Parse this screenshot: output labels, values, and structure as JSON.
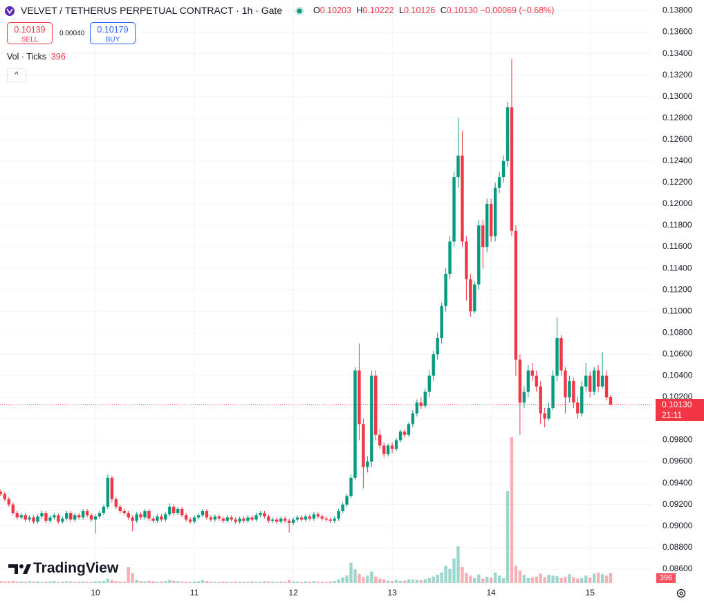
{
  "chart_data": {
    "type": "candlestick",
    "title": "VELVET / TETHERUS PERPETUAL CONTRACT · 1h · Gate",
    "ohlc_legend": [
      {
        "label": "O",
        "value": "0.10203"
      },
      {
        "label": "H",
        "value": "0.10222"
      },
      {
        "label": "L",
        "value": "0.10126"
      },
      {
        "label": "C",
        "value": "0.10130"
      }
    ],
    "change": "−0.00069 (−0.68%)",
    "sell": {
      "price": "0.10139",
      "label": "SELL"
    },
    "spread": "0.00040",
    "buy": {
      "price": "0.10179",
      "label": "BUY"
    },
    "volume_indicator": {
      "name": "Vol · Ticks",
      "value": "396"
    },
    "last_price_label": {
      "price": "0.10130",
      "countdown": "21:11"
    },
    "last_volume_label": "396",
    "watermark": "TradingView",
    "up_color": "#089981",
    "down_color": "#f23645",
    "grid": true,
    "categories": [
      null,
      null,
      null,
      null,
      null,
      null,
      null,
      null,
      null,
      null,
      null,
      null,
      null,
      null,
      null,
      null,
      null,
      null,
      null,
      null,
      null,
      null,
      null,
      "10",
      null,
      null,
      null,
      null,
      null,
      null,
      null,
      null,
      null,
      null,
      null,
      null,
      null,
      null,
      null,
      null,
      null,
      null,
      null,
      null,
      null,
      null,
      null,
      "11",
      null,
      null,
      null,
      null,
      null,
      null,
      null,
      null,
      null,
      null,
      null,
      null,
      null,
      null,
      null,
      null,
      null,
      null,
      null,
      null,
      null,
      null,
      null,
      "12",
      null,
      null,
      null,
      null,
      null,
      null,
      null,
      null,
      null,
      null,
      null,
      null,
      null,
      null,
      null,
      null,
      null,
      null,
      null,
      null,
      null,
      null,
      null,
      "13",
      null,
      null,
      null,
      null,
      null,
      null,
      null,
      null,
      null,
      null,
      null,
      null,
      null,
      null,
      null,
      null,
      null,
      null,
      null,
      null,
      null,
      null,
      null,
      "14",
      null,
      null,
      null,
      null,
      null,
      null,
      null,
      null,
      null,
      null,
      null,
      null,
      null,
      null,
      null,
      null,
      null,
      null,
      null,
      null,
      null,
      null,
      null,
      "15",
      null,
      null,
      null,
      null,
      null
    ],
    "open": [
      0.0932,
      0.093,
      0.0925,
      0.092,
      0.0912,
      0.0908,
      0.091,
      0.0906,
      0.0908,
      0.0904,
      0.0909,
      0.0912,
      0.0905,
      0.0908,
      0.091,
      0.0904,
      0.0907,
      0.0912,
      0.0906,
      0.091,
      0.0908,
      0.0914,
      0.091,
      0.0906,
      0.0909,
      0.0912,
      0.0918,
      0.0945,
      0.0925,
      0.0918,
      0.0914,
      0.0912,
      0.0908,
      0.0905,
      0.0911,
      0.0908,
      0.0914,
      0.0907,
      0.0905,
      0.0909,
      0.0906,
      0.0911,
      0.0918,
      0.0912,
      0.0916,
      0.091,
      0.0906,
      0.0904,
      0.0908,
      0.091,
      0.0914,
      0.0908,
      0.0906,
      0.0909,
      0.0907,
      0.0905,
      0.0908,
      0.0906,
      0.0904,
      0.0907,
      0.0905,
      0.0908,
      0.0906,
      0.091,
      0.0912,
      0.0909,
      0.0905,
      0.0906,
      0.0904,
      0.0907,
      0.0905,
      0.0903,
      0.0906,
      0.0908,
      0.0906,
      0.0909,
      0.0907,
      0.0911,
      0.0909,
      0.0907,
      0.0906,
      0.0905,
      0.0907,
      0.0914,
      0.092,
      0.0928,
      0.0945,
      0.1045,
      0.0995,
      0.0955,
      0.096,
      0.104,
      0.0985,
      0.0975,
      0.0967,
      0.0975,
      0.0972,
      0.098,
      0.0988,
      0.0985,
      0.0995,
      0.1005,
      0.1015,
      0.1012,
      0.1025,
      0.104,
      0.106,
      0.1075,
      0.1105,
      0.1135,
      0.1165,
      0.1225,
      0.1245,
      0.1165,
      0.113,
      0.11,
      0.1125,
      0.118,
      0.116,
      0.12,
      0.117,
      0.1215,
      0.1225,
      0.124,
      0.129,
      0.1175,
      0.1055,
      0.1015,
      0.1025,
      0.1045,
      0.104,
      0.103,
      0.1005,
      0.1,
      0.101,
      0.104,
      0.1075,
      0.1045,
      0.102,
      0.1035,
      0.1015,
      0.1005,
      0.103,
      0.104,
      0.1025,
      0.1045,
      0.103,
      0.104,
      0.10203
    ],
    "high": [
      0.0934,
      0.0932,
      0.0927,
      0.0922,
      0.0914,
      0.0912,
      0.0912,
      0.091,
      0.091,
      0.0911,
      0.0914,
      0.0914,
      0.091,
      0.0912,
      0.0912,
      0.0909,
      0.0914,
      0.0914,
      0.0912,
      0.0912,
      0.0916,
      0.0916,
      0.0912,
      0.0911,
      0.0914,
      0.092,
      0.0948,
      0.0947,
      0.0927,
      0.092,
      0.0916,
      0.0914,
      0.091,
      0.0913,
      0.0913,
      0.0916,
      0.0916,
      0.0909,
      0.0911,
      0.0911,
      0.0913,
      0.0921,
      0.092,
      0.0918,
      0.0918,
      0.0912,
      0.0908,
      0.091,
      0.0912,
      0.0916,
      0.0916,
      0.091,
      0.0911,
      0.0911,
      0.0909,
      0.091,
      0.091,
      0.0908,
      0.0909,
      0.0909,
      0.091,
      0.091,
      0.0912,
      0.0914,
      0.0914,
      0.0911,
      0.0908,
      0.0908,
      0.0909,
      0.0909,
      0.0907,
      0.0908,
      0.091,
      0.091,
      0.0911,
      0.0911,
      0.0913,
      0.0913,
      0.0911,
      0.0909,
      0.0908,
      0.0909,
      0.0916,
      0.0922,
      0.093,
      0.0948,
      0.1048,
      0.107,
      0.1,
      0.0965,
      0.1045,
      0.1045,
      0.099,
      0.0978,
      0.0977,
      0.0978,
      0.0982,
      0.099,
      0.099,
      0.0997,
      0.1008,
      0.1018,
      0.102,
      0.1028,
      0.1045,
      0.1063,
      0.108,
      0.1108,
      0.114,
      0.117,
      0.123,
      0.128,
      0.1268,
      0.117,
      0.1135,
      0.1128,
      0.1185,
      0.1185,
      0.1205,
      0.1205,
      0.122,
      0.123,
      0.1245,
      0.1295,
      0.1335,
      0.118,
      0.106,
      0.103,
      0.105,
      0.1052,
      0.1045,
      0.1035,
      0.101,
      0.1015,
      0.1045,
      0.1094,
      0.1078,
      0.1048,
      0.104,
      0.1038,
      0.102,
      0.1035,
      0.1052,
      0.1044,
      0.1048,
      0.105,
      0.1062,
      0.1045,
      0.10222
    ],
    "low": [
      0.0928,
      0.0923,
      0.0918,
      0.091,
      0.0906,
      0.0906,
      0.0904,
      0.0904,
      0.0902,
      0.0902,
      0.0907,
      0.0903,
      0.0903,
      0.0906,
      0.0902,
      0.0902,
      0.0905,
      0.0904,
      0.0904,
      0.0906,
      0.0906,
      0.0908,
      0.0904,
      0.0893,
      0.0907,
      0.091,
      0.0916,
      0.0922,
      0.0916,
      0.0912,
      0.091,
      0.0906,
      0.0895,
      0.0903,
      0.0906,
      0.0906,
      0.0905,
      0.0903,
      0.0903,
      0.0904,
      0.0904,
      0.0909,
      0.091,
      0.091,
      0.0908,
      0.0904,
      0.0902,
      0.0902,
      0.0906,
      0.0908,
      0.0906,
      0.0904,
      0.0904,
      0.0905,
      0.0903,
      0.0903,
      0.0904,
      0.0902,
      0.0902,
      0.0903,
      0.0903,
      0.0904,
      0.0904,
      0.0908,
      0.0907,
      0.0903,
      0.0903,
      0.0902,
      0.0902,
      0.0903,
      0.0894,
      0.0901,
      0.0904,
      0.0904,
      0.0904,
      0.0905,
      0.0905,
      0.0907,
      0.0905,
      0.0904,
      0.0903,
      0.0903,
      0.0905,
      0.0912,
      0.0918,
      0.0926,
      0.0943,
      0.098,
      0.0935,
      0.095,
      0.0955,
      0.098,
      0.0972,
      0.0964,
      0.0965,
      0.0968,
      0.097,
      0.0978,
      0.0982,
      0.0983,
      0.0992,
      0.1002,
      0.1009,
      0.101,
      0.102,
      0.1035,
      0.1055,
      0.107,
      0.11,
      0.113,
      0.116,
      0.1215,
      0.116,
      0.111,
      0.1095,
      0.1098,
      0.112,
      0.114,
      0.1155,
      0.1165,
      0.1165,
      0.121,
      0.122,
      0.1235,
      0.117,
      0.104,
      0.0985,
      0.101,
      0.102,
      0.1035,
      0.1025,
      0.0995,
      0.0992,
      0.0998,
      0.1008,
      0.1035,
      0.104,
      0.1005,
      0.1015,
      0.101,
      0.1,
      0.1002,
      0.1025,
      0.102,
      0.1022,
      0.1025,
      0.1028,
      0.1017,
      0.10126
    ],
    "close": [
      0.093,
      0.0925,
      0.092,
      0.0912,
      0.0908,
      0.091,
      0.0906,
      0.0908,
      0.0904,
      0.0909,
      0.0912,
      0.0905,
      0.0908,
      0.091,
      0.0904,
      0.0907,
      0.0912,
      0.0906,
      0.091,
      0.0908,
      0.0914,
      0.091,
      0.0906,
      0.0909,
      0.0912,
      0.0918,
      0.0945,
      0.0925,
      0.0918,
      0.0914,
      0.0912,
      0.0908,
      0.0905,
      0.0911,
      0.0908,
      0.0914,
      0.0907,
      0.0905,
      0.0909,
      0.0906,
      0.0911,
      0.0918,
      0.0912,
      0.0916,
      0.091,
      0.0906,
      0.0904,
      0.0908,
      0.091,
      0.0914,
      0.0908,
      0.0906,
      0.0909,
      0.0907,
      0.0905,
      0.0908,
      0.0906,
      0.0904,
      0.0907,
      0.0905,
      0.0908,
      0.0906,
      0.091,
      0.0912,
      0.0909,
      0.0905,
      0.0906,
      0.0904,
      0.0907,
      0.0905,
      0.0903,
      0.0906,
      0.0908,
      0.0906,
      0.0909,
      0.0907,
      0.0911,
      0.0909,
      0.0907,
      0.0906,
      0.0905,
      0.0907,
      0.0914,
      0.092,
      0.0928,
      0.0945,
      0.1045,
      0.0995,
      0.0955,
      0.096,
      0.104,
      0.0985,
      0.0975,
      0.0967,
      0.0975,
      0.0972,
      0.098,
      0.0988,
      0.0985,
      0.0995,
      0.1005,
      0.1015,
      0.1012,
      0.1025,
      0.104,
      0.106,
      0.1075,
      0.1105,
      0.1135,
      0.1165,
      0.1225,
      0.1245,
      0.1165,
      0.113,
      0.11,
      0.1125,
      0.118,
      0.116,
      0.12,
      0.117,
      0.1215,
      0.1225,
      0.124,
      0.129,
      0.1175,
      0.1055,
      0.1015,
      0.1025,
      0.1045,
      0.104,
      0.103,
      0.1005,
      0.1,
      0.101,
      0.104,
      0.1075,
      0.1045,
      0.102,
      0.1035,
      0.1015,
      0.1005,
      0.103,
      0.104,
      0.1025,
      0.1045,
      0.103,
      0.104,
      0.10199,
      0.1013
    ],
    "volume": [
      80,
      60,
      70,
      90,
      50,
      60,
      40,
      70,
      50,
      60,
      40,
      50,
      60,
      80,
      40,
      50,
      70,
      60,
      40,
      50,
      60,
      50,
      40,
      60,
      70,
      90,
      180,
      120,
      80,
      60,
      50,
      650,
      400,
      120,
      80,
      60,
      90,
      70,
      50,
      60,
      80,
      120,
      90,
      70,
      60,
      50,
      40,
      60,
      70,
      110,
      80,
      60,
      50,
      40,
      60,
      50,
      40,
      60,
      50,
      40,
      50,
      60,
      40,
      50,
      70,
      60,
      50,
      40,
      60,
      50,
      120,
      60,
      50,
      40,
      60,
      50,
      80,
      60,
      50,
      40,
      60,
      90,
      150,
      220,
      300,
      830,
      560,
      370,
      240,
      300,
      470,
      260,
      180,
      140,
      100,
      80,
      120,
      90,
      100,
      150,
      130,
      120,
      110,
      160,
      200,
      260,
      340,
      430,
      700,
      570,
      1000,
      1500,
      650,
      400,
      300,
      200,
      350,
      180,
      250,
      220,
      430,
      300,
      200,
      3760,
      5960,
      700,
      500,
      330,
      200,
      220,
      260,
      380,
      240,
      330,
      300,
      280,
      200,
      250,
      360,
      240,
      180,
      200,
      300,
      220,
      380,
      420,
      360,
      300,
      396
    ],
    "ylim": [
      0.0847,
      0.139
    ],
    "yticks": [
      {
        "value": 0.086,
        "label": "0.08600"
      },
      {
        "value": 0.088,
        "label": "0.08800"
      },
      {
        "value": 0.09,
        "label": "0.09000"
      },
      {
        "value": 0.092,
        "label": "0.09200"
      },
      {
        "value": 0.094,
        "label": "0.09400"
      },
      {
        "value": 0.096,
        "label": "0.09600"
      },
      {
        "value": 0.098,
        "label": "0.09800"
      },
      {
        "value": 0.1,
        "label": "0.10000"
      },
      {
        "value": 0.102,
        "label": "0.10200"
      },
      {
        "value": 0.104,
        "label": "0.10400"
      },
      {
        "value": 0.106,
        "label": "0.10600"
      },
      {
        "value": 0.108,
        "label": "0.10800"
      },
      {
        "value": 0.11,
        "label": "0.11000"
      },
      {
        "value": 0.112,
        "label": "0.11200"
      },
      {
        "value": 0.114,
        "label": "0.11400"
      },
      {
        "value": 0.116,
        "label": "0.11600"
      },
      {
        "value": 0.118,
        "label": "0.11800"
      },
      {
        "value": 0.12,
        "label": "0.12000"
      },
      {
        "value": 0.122,
        "label": "0.12200"
      },
      {
        "value": 0.124,
        "label": "0.12400"
      },
      {
        "value": 0.126,
        "label": "0.12600"
      },
      {
        "value": 0.128,
        "label": "0.12800"
      },
      {
        "value": 0.13,
        "label": "0.13000"
      },
      {
        "value": 0.132,
        "label": "0.13200"
      },
      {
        "value": 0.134,
        "label": "0.13400"
      },
      {
        "value": 0.136,
        "label": "0.13600"
      },
      {
        "value": 0.138,
        "label": "0.13800"
      }
    ]
  }
}
